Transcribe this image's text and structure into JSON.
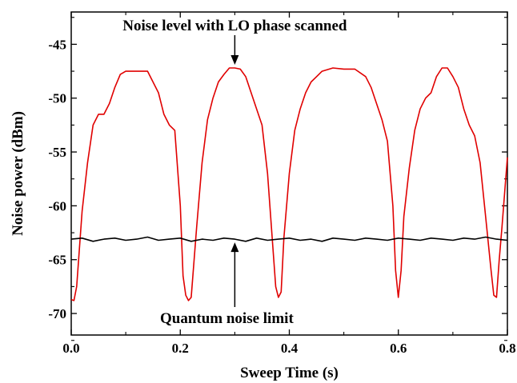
{
  "chart_data": {
    "type": "line",
    "xlabel": "Sweep Time (s)",
    "ylabel": "Noise power (dBm)",
    "xlim": [
      0.0,
      0.8
    ],
    "ylim": [
      -72,
      -42
    ],
    "x_ticks": [
      "0.0",
      "0.2",
      "0.4",
      "0.6",
      "0.8"
    ],
    "y_ticks": [
      "-45",
      "-50",
      "-55",
      "-60",
      "-65",
      "-70"
    ],
    "grid": false,
    "series": [
      {
        "color": "#e00000",
        "x": [
          0.0,
          0.005,
          0.01,
          0.015,
          0.02,
          0.03,
          0.04,
          0.05,
          0.06,
          0.07,
          0.08,
          0.09,
          0.1,
          0.12,
          0.14,
          0.16,
          0.17,
          0.18,
          0.19,
          0.2,
          0.205,
          0.21,
          0.215,
          0.22,
          0.23,
          0.24,
          0.25,
          0.26,
          0.27,
          0.28,
          0.29,
          0.3,
          0.31,
          0.32,
          0.33,
          0.34,
          0.35,
          0.36,
          0.37,
          0.375,
          0.38,
          0.385,
          0.39,
          0.4,
          0.41,
          0.42,
          0.43,
          0.44,
          0.45,
          0.46,
          0.48,
          0.5,
          0.52,
          0.54,
          0.55,
          0.56,
          0.57,
          0.58,
          0.59,
          0.595,
          0.6,
          0.605,
          0.61,
          0.62,
          0.63,
          0.64,
          0.65,
          0.66,
          0.67,
          0.68,
          0.69,
          0.7,
          0.71,
          0.72,
          0.73,
          0.74,
          0.75,
          0.76,
          0.77,
          0.775,
          0.78,
          0.785,
          0.79,
          0.8
        ],
        "y": [
          -68.7,
          -68.8,
          -67.5,
          -64.0,
          -60.5,
          -56.0,
          -52.5,
          -51.5,
          -51.5,
          -50.5,
          -49.0,
          -47.8,
          -47.5,
          -47.5,
          -47.5,
          -49.5,
          -51.5,
          -52.5,
          -53.0,
          -60.0,
          -66.5,
          -68.3,
          -68.8,
          -68.5,
          -62.0,
          -56.0,
          -52.0,
          -50.0,
          -48.5,
          -47.8,
          -47.2,
          -47.2,
          -47.3,
          -48.0,
          -49.5,
          -51.0,
          -52.5,
          -57.0,
          -64.0,
          -67.5,
          -68.5,
          -68.0,
          -63.0,
          -57.0,
          -53.0,
          -51.0,
          -49.5,
          -48.5,
          -48.0,
          -47.5,
          -47.2,
          -47.3,
          -47.3,
          -48.0,
          -49.0,
          -50.5,
          -52.0,
          -54.0,
          -60.0,
          -66.0,
          -68.5,
          -66.0,
          -61.0,
          -56.5,
          -53.0,
          -51.0,
          -50.0,
          -49.5,
          -48.0,
          -47.2,
          -47.2,
          -48.0,
          -49.0,
          -51.0,
          -52.5,
          -53.5,
          -56.0,
          -61.0,
          -66.0,
          -68.3,
          -68.5,
          -65.0,
          -62.0,
          -55.5
        ]
      },
      {
        "color": "#000000",
        "x": [
          0.0,
          0.02,
          0.04,
          0.06,
          0.08,
          0.1,
          0.12,
          0.14,
          0.16,
          0.18,
          0.2,
          0.22,
          0.24,
          0.26,
          0.28,
          0.3,
          0.32,
          0.34,
          0.36,
          0.38,
          0.4,
          0.42,
          0.44,
          0.46,
          0.48,
          0.5,
          0.52,
          0.54,
          0.56,
          0.58,
          0.6,
          0.62,
          0.64,
          0.66,
          0.68,
          0.7,
          0.72,
          0.74,
          0.76,
          0.78,
          0.8
        ],
        "y": [
          -63.1,
          -63.0,
          -63.3,
          -63.1,
          -63.0,
          -63.2,
          -63.1,
          -62.9,
          -63.2,
          -63.1,
          -63.0,
          -63.3,
          -63.1,
          -63.2,
          -63.0,
          -63.1,
          -63.3,
          -63.0,
          -63.2,
          -63.1,
          -63.0,
          -63.2,
          -63.1,
          -63.3,
          -63.0,
          -63.1,
          -63.2,
          -63.0,
          -63.1,
          -63.2,
          -63.0,
          -63.1,
          -63.2,
          -63.0,
          -63.1,
          -63.2,
          -63.0,
          -63.1,
          -62.9,
          -63.1,
          -63.2
        ]
      }
    ],
    "annotations": [
      {
        "text": "Noise level with LO phase scanned",
        "target_x": 0.3,
        "target_y": -47.2,
        "position": "above"
      },
      {
        "text": "Quantum noise limit",
        "target_x": 0.3,
        "target_y": -63.1,
        "position": "below"
      }
    ]
  }
}
